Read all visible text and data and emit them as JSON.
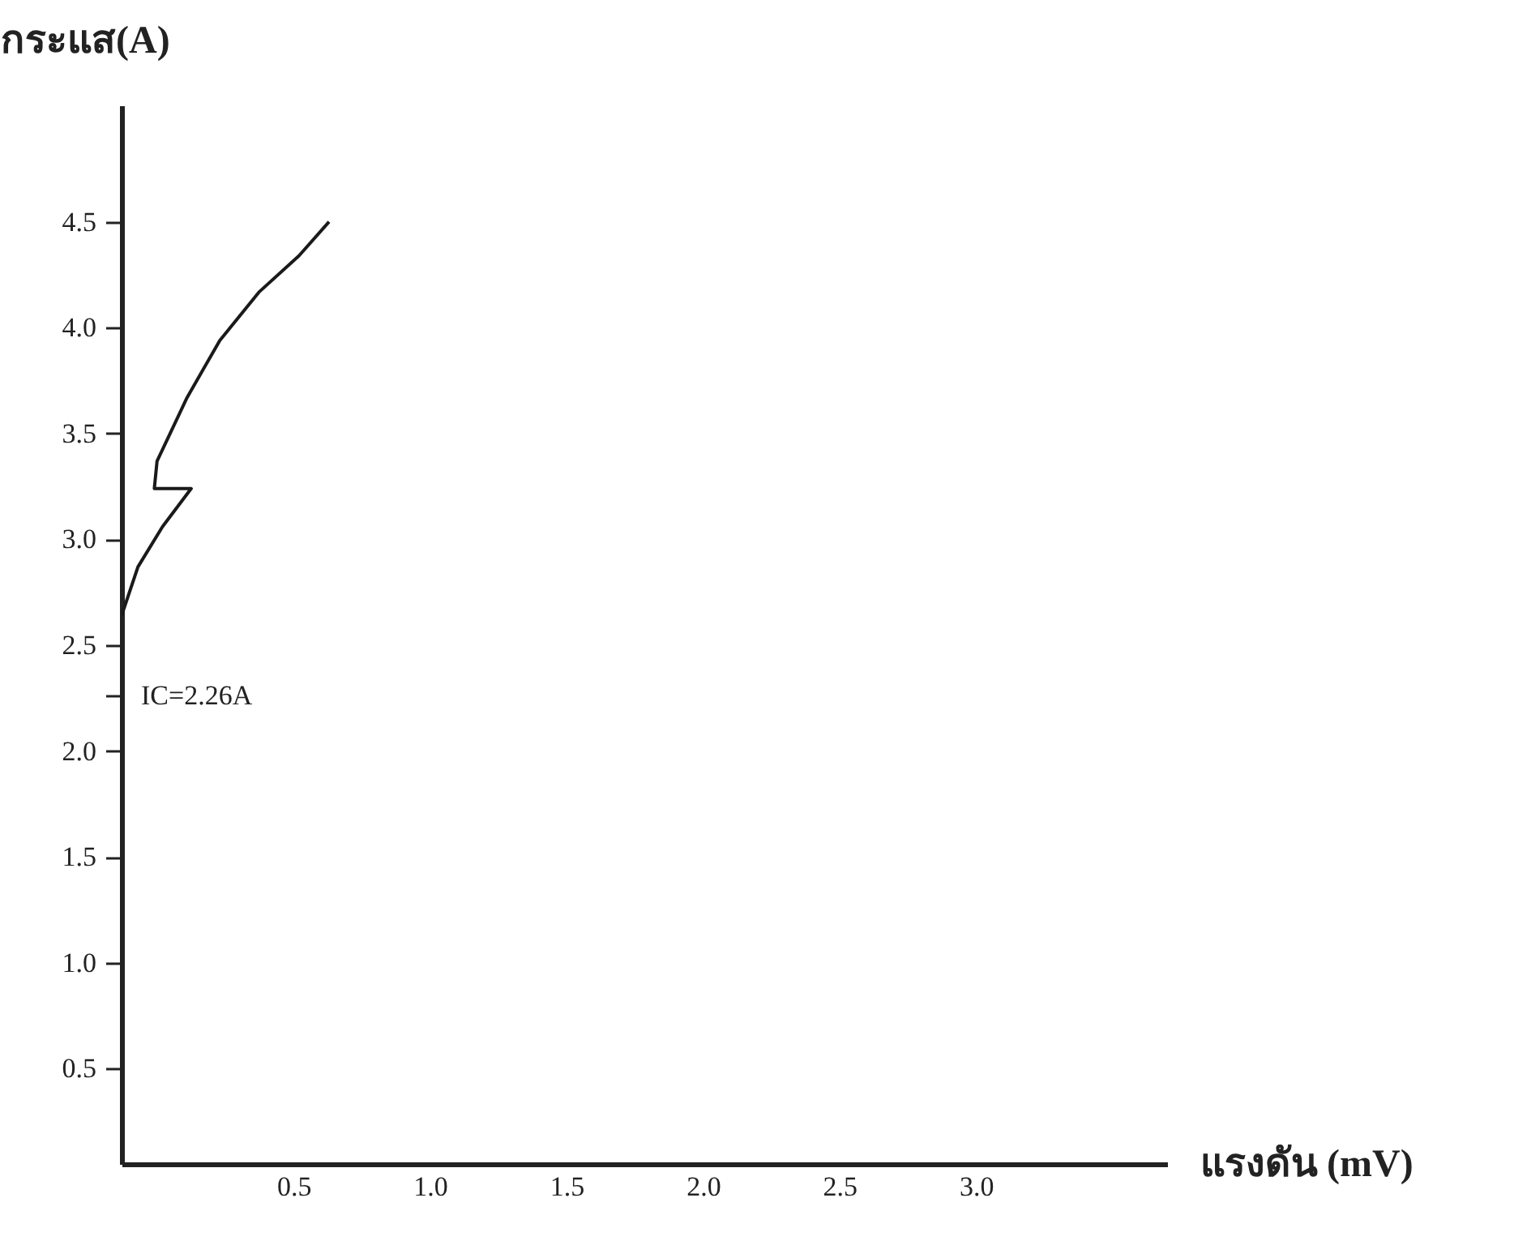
{
  "chart_data": {
    "type": "line",
    "xlabel": "แรงดัน (mV)",
    "ylabel": "กระแส(A)",
    "x": [
      -0.13,
      -0.07,
      0.02,
      0.125,
      -0.01,
      0.0,
      0.11,
      0.23,
      0.375,
      0.52,
      0.63
    ],
    "series": [
      {
        "color": "#1a1a1a",
        "values": [
          2.64,
          2.87,
          3.06,
          3.24,
          3.24,
          3.37,
          3.67,
          3.94,
          4.17,
          4.34,
          4.5
        ]
      }
    ],
    "xlim": [
      -0.13,
      3.7
    ],
    "ylim": [
      0.05,
      5.05
    ],
    "xticks": [
      {
        "value": 0.5,
        "label": "0.5"
      },
      {
        "value": 1,
        "label": "1.0"
      },
      {
        "value": 1.5,
        "label": "1.5"
      },
      {
        "value": 2,
        "label": "2.0"
      },
      {
        "value": 2.5,
        "label": "2.5"
      },
      {
        "value": 3,
        "label": "3.0"
      }
    ],
    "yticks": [
      {
        "value": 0.5,
        "label": "0.5"
      },
      {
        "value": 1,
        "label": "1.0"
      },
      {
        "value": 1.5,
        "label": "1.5"
      },
      {
        "value": 2,
        "label": "2.0"
      },
      {
        "value": 2.26,
        "label": null
      },
      {
        "value": 2.5,
        "label": "2.5"
      },
      {
        "value": 3,
        "label": "3.0"
      },
      {
        "value": 3.5,
        "label": "3.5"
      },
      {
        "value": 4,
        "label": "4.0"
      },
      {
        "value": 4.5,
        "label": "4.5"
      }
    ],
    "annotations": [
      "IC=2.26A"
    ],
    "grid": false,
    "marker": "none",
    "line_style": "solid"
  }
}
